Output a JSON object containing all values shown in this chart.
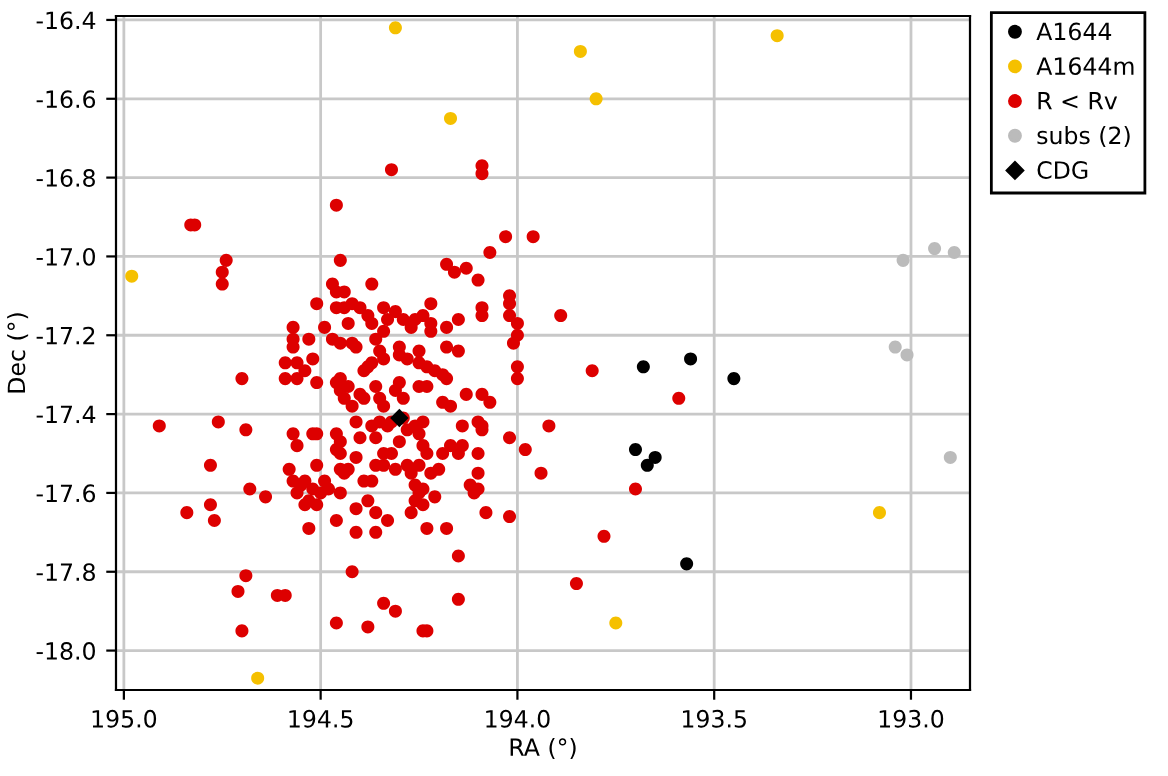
{
  "chart_data": {
    "type": "scatter",
    "xlabel": "RA (°)",
    "ylabel": "Dec (°)",
    "xlim": [
      195.02,
      192.85
    ],
    "ylim": [
      -18.1,
      -16.39
    ],
    "xticks": [
      {
        "value": 195,
        "label": "195.0"
      },
      194.5,
      {
        "value": 194,
        "label": "194.0"
      },
      193.5,
      {
        "value": 193,
        "label": "193.0"
      }
    ],
    "yticks": [
      {
        "value": -18,
        "label": "-18.0"
      },
      -17.8,
      -17.6,
      -17.4,
      -17.2,
      {
        "value": -17,
        "label": "-17.0"
      },
      -16.8,
      -16.6,
      -16.4
    ],
    "grid": true,
    "legend": "top right",
    "series": [
      {
        "name": "A1644",
        "color": "#000000",
        "marker": "circle",
        "x": [
          193.68,
          193.56,
          193.45,
          193.7,
          193.65,
          193.67,
          193.57
        ],
        "values": [
          -17.28,
          -17.26,
          -17.31,
          -17.49,
          -17.51,
          -17.53,
          -17.78
        ]
      },
      {
        "name": "A1644m",
        "color": "#f5c000",
        "marker": "circle",
        "x": [
          194.31,
          193.84,
          193.34,
          193.8,
          194.17,
          194.98,
          193.08,
          193.75,
          194.66
        ],
        "values": [
          -16.42,
          -16.48,
          -16.44,
          -16.6,
          -16.65,
          -17.05,
          -17.65,
          -17.93,
          -18.07
        ]
      },
      {
        "name": "R < Rv",
        "color": "#dd0000",
        "marker": "circle",
        "x": [
          194.32,
          194.09,
          194.09,
          194.46,
          194.83,
          194.82,
          194.74,
          194.75,
          194.75,
          194.03,
          193.96,
          194.07,
          194.45,
          194.18,
          194.16,
          194.13,
          194.1,
          194.47,
          194.37,
          194.46,
          194.44,
          194.02,
          194.02,
          193.89,
          193.81,
          193.59,
          193.7,
          193.78,
          193.85,
          193.92,
          193.98,
          193.94,
          194.02,
          194.08,
          194.15,
          194.15,
          194.23,
          194.18,
          194.24,
          194.23,
          194.31,
          194.34,
          194.38,
          194.46,
          194.42,
          194.53,
          194.61,
          194.59,
          194.69,
          194.71,
          194.7,
          194.91,
          194.84,
          194.78,
          194.77,
          194.78,
          194.76,
          194.7,
          194.69,
          194.68,
          194.64,
          194.41,
          194.36,
          194.33,
          194.46,
          194.41,
          194.36,
          194.51,
          194.49,
          194.46,
          194.44,
          194.42,
          194.4,
          194.38,
          194.34,
          194.33,
          194.31,
          194.29,
          194.26,
          194.24,
          194.22,
          194.22,
          194.18,
          194.15,
          194.09,
          194.09,
          194.02,
          194.0,
          194.0,
          194.01,
          194.27,
          194.43,
          194.37,
          194.34,
          194.57,
          194.57,
          194.57,
          194.59,
          194.56,
          194.53,
          194.52,
          194.47,
          194.45,
          194.42,
          194.41,
          194.39,
          194.38,
          194.37,
          194.36,
          194.35,
          194.34,
          194.3,
          194.3,
          194.28,
          194.25,
          194.25,
          194.23,
          194.21,
          194.18,
          194.15,
          194.22,
          194.0,
          194.59,
          194.56,
          194.54,
          194.51,
          194.46,
          194.45,
          194.43,
          194.44,
          194.42,
          194.4,
          194.39,
          194.36,
          194.35,
          194.34,
          194.31,
          194.3,
          194.29,
          194.25,
          194.23,
          194.19,
          194.18,
          194.19,
          194.17,
          194.13,
          194.09,
          194.07,
          194.0,
          194.45,
          194.57,
          194.56,
          194.52,
          194.51,
          194.46,
          194.45,
          194.41,
          194.4,
          194.37,
          194.36,
          194.35,
          194.32,
          194.33,
          194.29,
          194.28,
          194.26,
          194.24,
          194.25,
          194.3,
          194.14,
          194.1,
          194.09,
          194.09,
          194.02,
          194.17,
          194.58,
          194.57,
          194.55,
          194.54,
          194.52,
          194.51,
          194.49,
          194.46,
          194.45,
          194.45,
          194.43,
          194.41,
          194.39,
          194.37,
          194.36,
          194.34,
          194.34,
          194.32,
          194.31,
          194.28,
          194.27,
          194.25,
          194.24,
          194.23,
          194.22,
          194.2,
          194.19,
          194.15,
          194.14,
          194.1,
          194.12,
          194.1,
          194.1,
          194.56,
          194.54,
          194.53,
          194.51,
          194.5,
          194.48,
          194.44,
          194.38,
          194.26,
          194.25,
          194.24,
          194.27,
          194.26,
          194.24,
          194.11,
          194.21,
          194.45
        ],
        "values": [
          -16.78,
          -16.77,
          -16.79,
          -16.87,
          -16.92,
          -16.92,
          -17.01,
          -17.04,
          -17.07,
          -16.95,
          -16.95,
          -16.99,
          -17.01,
          -17.02,
          -17.04,
          -17.03,
          -17.06,
          -17.07,
          -17.07,
          -17.09,
          -17.09,
          -17.1,
          -17.12,
          -17.15,
          -17.29,
          -17.36,
          -17.59,
          -17.71,
          -17.83,
          -17.43,
          -17.49,
          -17.55,
          -17.66,
          -17.65,
          -17.76,
          -17.87,
          -17.69,
          -17.69,
          -17.95,
          -17.95,
          -17.9,
          -17.88,
          -17.94,
          -17.93,
          -17.8,
          -17.69,
          -17.86,
          -17.86,
          -17.81,
          -17.85,
          -17.95,
          -17.43,
          -17.65,
          -17.63,
          -17.67,
          -17.53,
          -17.42,
          -17.31,
          -17.44,
          -17.59,
          -17.61,
          -17.7,
          -17.7,
          -17.67,
          -17.67,
          -17.64,
          -17.65,
          -17.12,
          -17.18,
          -17.13,
          -17.13,
          -17.12,
          -17.13,
          -17.15,
          -17.13,
          -17.16,
          -17.14,
          -17.16,
          -17.16,
          -17.15,
          -17.12,
          -17.17,
          -17.18,
          -17.16,
          -17.13,
          -17.15,
          -17.15,
          -17.17,
          -17.2,
          -17.22,
          -17.18,
          -17.17,
          -17.17,
          -17.19,
          -17.18,
          -17.21,
          -17.23,
          -17.27,
          -17.27,
          -17.21,
          -17.26,
          -17.21,
          -17.22,
          -17.22,
          -17.23,
          -17.29,
          -17.28,
          -17.27,
          -17.21,
          -17.24,
          -17.26,
          -17.23,
          -17.25,
          -17.26,
          -17.24,
          -17.27,
          -17.28,
          -17.29,
          -17.23,
          -17.24,
          -17.19,
          -17.28,
          -17.31,
          -17.31,
          -17.29,
          -17.32,
          -17.32,
          -17.34,
          -17.33,
          -17.36,
          -17.38,
          -17.35,
          -17.36,
          -17.33,
          -17.36,
          -17.38,
          -17.34,
          -17.32,
          -17.36,
          -17.33,
          -17.33,
          -17.3,
          -17.31,
          -17.37,
          -17.38,
          -17.35,
          -17.35,
          -17.37,
          -17.31,
          -17.31,
          -17.45,
          -17.48,
          -17.45,
          -17.45,
          -17.45,
          -17.47,
          -17.42,
          -17.46,
          -17.43,
          -17.46,
          -17.42,
          -17.42,
          -17.43,
          -17.41,
          -17.44,
          -17.43,
          -17.42,
          -17.45,
          -17.47,
          -17.43,
          -17.42,
          -17.43,
          -17.44,
          -17.46,
          -17.48,
          -17.54,
          -17.57,
          -17.58,
          -17.57,
          -17.59,
          -17.53,
          -17.57,
          -17.49,
          -17.5,
          -17.54,
          -17.54,
          -17.51,
          -17.57,
          -17.57,
          -17.53,
          -17.5,
          -17.53,
          -17.5,
          -17.54,
          -17.53,
          -17.55,
          -17.53,
          -17.48,
          -17.5,
          -17.55,
          -17.54,
          -17.5,
          -17.5,
          -17.48,
          -17.5,
          -17.58,
          -17.59,
          -17.55,
          -17.6,
          -17.63,
          -17.62,
          -17.63,
          -17.6,
          -17.59,
          -17.55,
          -17.62,
          -17.58,
          -17.6,
          -17.63,
          -17.65,
          -17.62,
          -17.59,
          -17.6,
          -17.61,
          -17.6
        ]
      },
      {
        "name": "subs (2)",
        "color": "#bbbbbb",
        "marker": "circle",
        "x": [
          193.02,
          192.94,
          192.89,
          193.04,
          193.01,
          192.9
        ],
        "values": [
          -17.01,
          -16.98,
          -16.99,
          -17.23,
          -17.25,
          -17.51
        ]
      },
      {
        "name": "CDG",
        "color": "#000000",
        "marker": "diamond",
        "x": [
          194.3
        ],
        "values": [
          -17.41
        ]
      }
    ]
  }
}
